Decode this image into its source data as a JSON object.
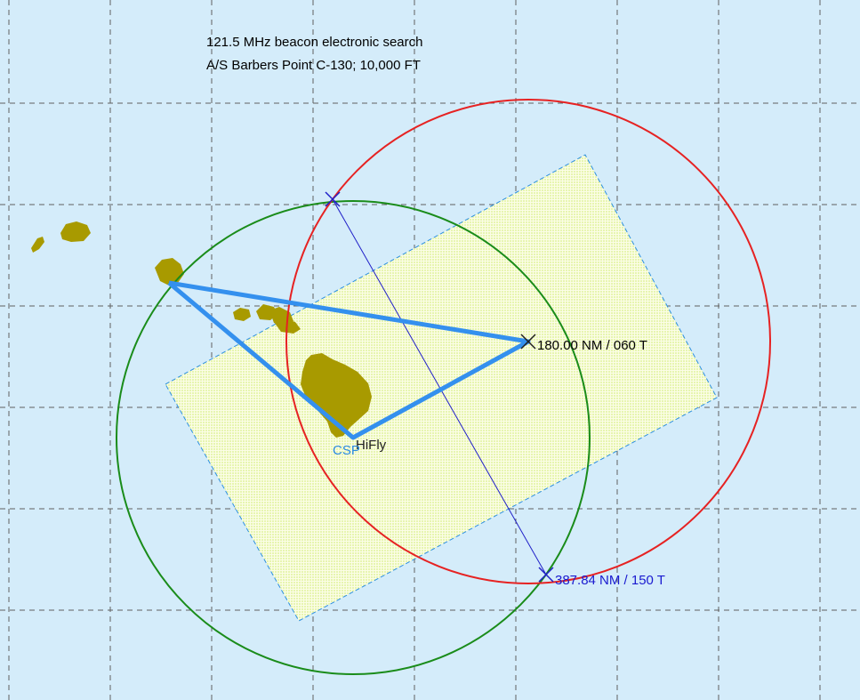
{
  "title": {
    "line1": "121.5 MHz beacon electronic search",
    "line2": "A/S Barbers Point C-130; 10,000 FT"
  },
  "labels": {
    "range_point": "180.00 NM / 060 T",
    "intersection": "387.84 NM / 150 T",
    "csp": "CSP",
    "origin": "HiFly"
  },
  "colors": {
    "background": "#d4ecfa",
    "grid": "#606060",
    "search_area_fill": "#f0f8c4",
    "search_area_border": "#2c8fe0",
    "track": "#3490ee",
    "red_circle": "#e62222",
    "green_circle": "#1a8c1a",
    "bearing_line": "#2020c8",
    "land": "#a89a00",
    "csp_label": "#2a8ae0",
    "intersection_label": "#1a1ad0"
  }
}
